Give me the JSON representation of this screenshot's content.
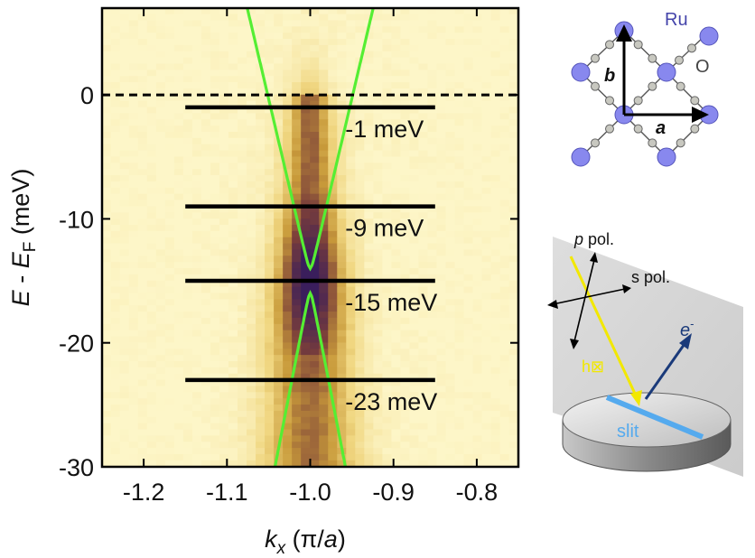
{
  "chart_data": {
    "type": "heatmap",
    "xlabel_main": "k",
    "xlabel_sub": "x",
    "xlabel_unit_open": " (π/",
    "xlabel_unit_var": "a",
    "xlabel_unit_close": ")",
    "ylabel_var": "E",
    "ylabel_mid": " - ",
    "ylabel_var2": "E",
    "ylabel_sub": "F",
    "ylabel_unit": " (meV)",
    "xlim": [
      -1.25,
      -0.75
    ],
    "ylim": [
      -30,
      7
    ],
    "x_ticks": [
      -1.2,
      -1.1,
      -1.0,
      -0.9,
      -0.8
    ],
    "x_tick_labels": [
      "-1.2",
      "-1.1",
      "-1.0",
      "-0.9",
      "-0.8"
    ],
    "y_ticks": [
      0,
      -10,
      -20,
      -30
    ],
    "y_tick_labels": [
      "0",
      "-10",
      "-20",
      "-30"
    ],
    "fermi_level": 0,
    "cuts": [
      {
        "energy": -1,
        "x_range": [
          -1.15,
          -0.85
        ],
        "label": "-1 meV"
      },
      {
        "energy": -9,
        "x_range": [
          -1.15,
          -0.85
        ],
        "label": "-9 meV"
      },
      {
        "energy": -15,
        "x_range": [
          -1.15,
          -0.85
        ],
        "label": "-15 meV"
      },
      {
        "energy": -23,
        "x_range": [
          -1.15,
          -0.85
        ],
        "label": "-23 meV"
      }
    ],
    "dispersion": {
      "center": -1.0,
      "gap_top": -14,
      "gap_bottom": -16,
      "velocity_upper": 0.0035,
      "velocity_lower": 0.0029,
      "color": "#55ee33"
    },
    "colormap": [
      "#fdf6c8",
      "#f0d680",
      "#c89a3a",
      "#7a3e3a",
      "#3a1e5c"
    ]
  },
  "lattice": {
    "label_ru": "Ru",
    "label_o": "O",
    "label_b": "b",
    "label_a": "a",
    "ru_color": "#8888ee",
    "o_color": "#c8c8c0"
  },
  "geometry": {
    "label_p_italic": "p",
    "label_p_rest": " pol.",
    "label_s": "s pol.",
    "label_e": "e",
    "label_e_sup": "-",
    "label_hv": "h",
    "label_hv_glyph": "⊠",
    "label_slit": "slit",
    "beam_color": "#f2e800",
    "electron_color": "#1a3a7a",
    "slit_color": "#55aaee"
  }
}
